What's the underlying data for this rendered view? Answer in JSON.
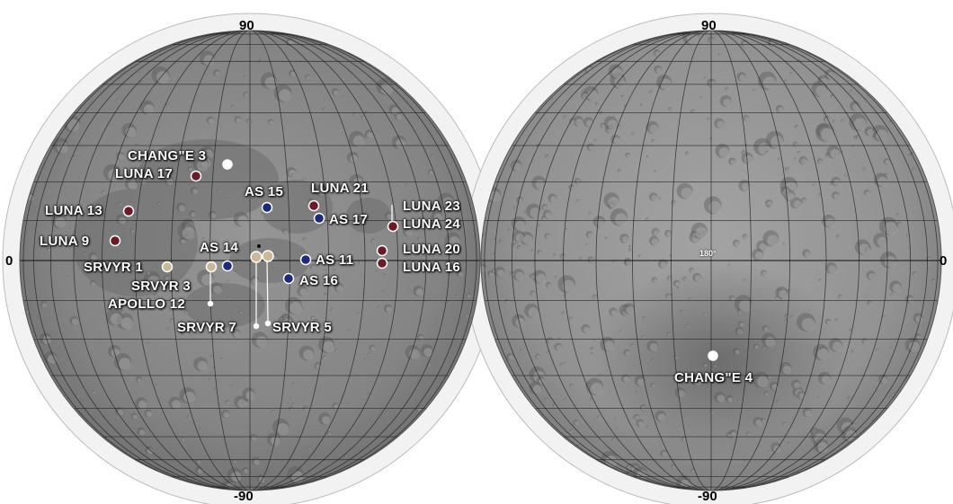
{
  "hemispheres": {
    "near_side": {
      "north_label": "90",
      "south_label": "-90",
      "west_label": "0"
    },
    "far_side": {
      "north_label": "90",
      "south_label": "-90",
      "east_label": "0",
      "center_label": "180°"
    }
  },
  "sites": [
    {
      "id": "change3",
      "label": "CHANG\"E 3",
      "color": "#ffffff"
    },
    {
      "id": "luna17",
      "label": "LUNA 17",
      "color": "#6b1a28"
    },
    {
      "id": "as15",
      "label": "AS 15",
      "color": "#1c2a78"
    },
    {
      "id": "luna21",
      "label": "LUNA 21",
      "color": "#6b1a28"
    },
    {
      "id": "luna13",
      "label": "LUNA 13",
      "color": "#6b1a28"
    },
    {
      "id": "as17",
      "label": "AS 17",
      "color": "#1c2a78"
    },
    {
      "id": "luna23",
      "label": "LUNA 23",
      "color": "#6b1a28"
    },
    {
      "id": "luna24",
      "label": "LUNA 24",
      "color": "#6b1a28"
    },
    {
      "id": "luna9",
      "label": "LUNA 9",
      "color": "#6b1a28"
    },
    {
      "id": "luna20",
      "label": "LUNA 20",
      "color": "#6b1a28"
    },
    {
      "id": "as14",
      "label": "AS 14",
      "color": "#1c2a78"
    },
    {
      "id": "srvyr1",
      "label": "SRVYR 1",
      "color": "#c9b99a"
    },
    {
      "id": "as11",
      "label": "AS 11",
      "color": "#1c2a78"
    },
    {
      "id": "luna16",
      "label": "LUNA 16",
      "color": "#6b1a28"
    },
    {
      "id": "srvyr3",
      "label": "SRVYR 3",
      "color": "#c9b99a"
    },
    {
      "id": "as16",
      "label": "AS 16",
      "color": "#1c2a78"
    },
    {
      "id": "apollo12",
      "label": "APOLLO 12",
      "color": "#ffffff"
    },
    {
      "id": "srvyr7",
      "label": "SRVYR 7",
      "color": "#ffffff"
    },
    {
      "id": "srvyr5",
      "label": "SRVYR 5",
      "color": "#ffffff"
    },
    {
      "id": "change4",
      "label": "CHANG\"E 4",
      "color": "#ffffff"
    }
  ],
  "colors": {
    "rim": "#eeeeee",
    "surface": "#8d8d8d",
    "grid": "#2a2a2a",
    "luna_marker": "#6b1a28",
    "apollo_marker": "#1c2a78",
    "surveyor_marker": "#c9b99a"
  }
}
